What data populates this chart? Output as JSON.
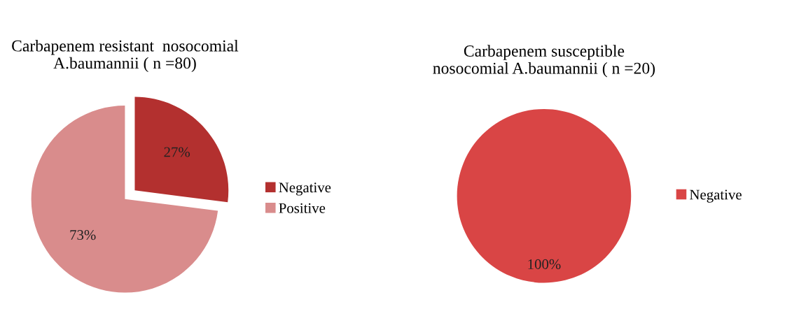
{
  "chart_data": [
    {
      "type": "pie",
      "title": "Carbapenem resistant  nosocomial\nA.baumannii ( n =80)",
      "categories": [
        "Negative",
        "Positive"
      ],
      "values": [
        27,
        73
      ],
      "colors": [
        "#b3302f",
        "#d98c8c"
      ],
      "value_labels": [
        "27%",
        "73%"
      ],
      "legend": "right"
    },
    {
      "type": "pie",
      "title": "Carbapenem susceptible\nnosocomial A.baumannii ( n =20)",
      "categories": [
        "Negative"
      ],
      "values": [
        100
      ],
      "colors": [
        "#d94545"
      ],
      "value_labels": [
        "100%"
      ],
      "legend": "right"
    }
  ]
}
